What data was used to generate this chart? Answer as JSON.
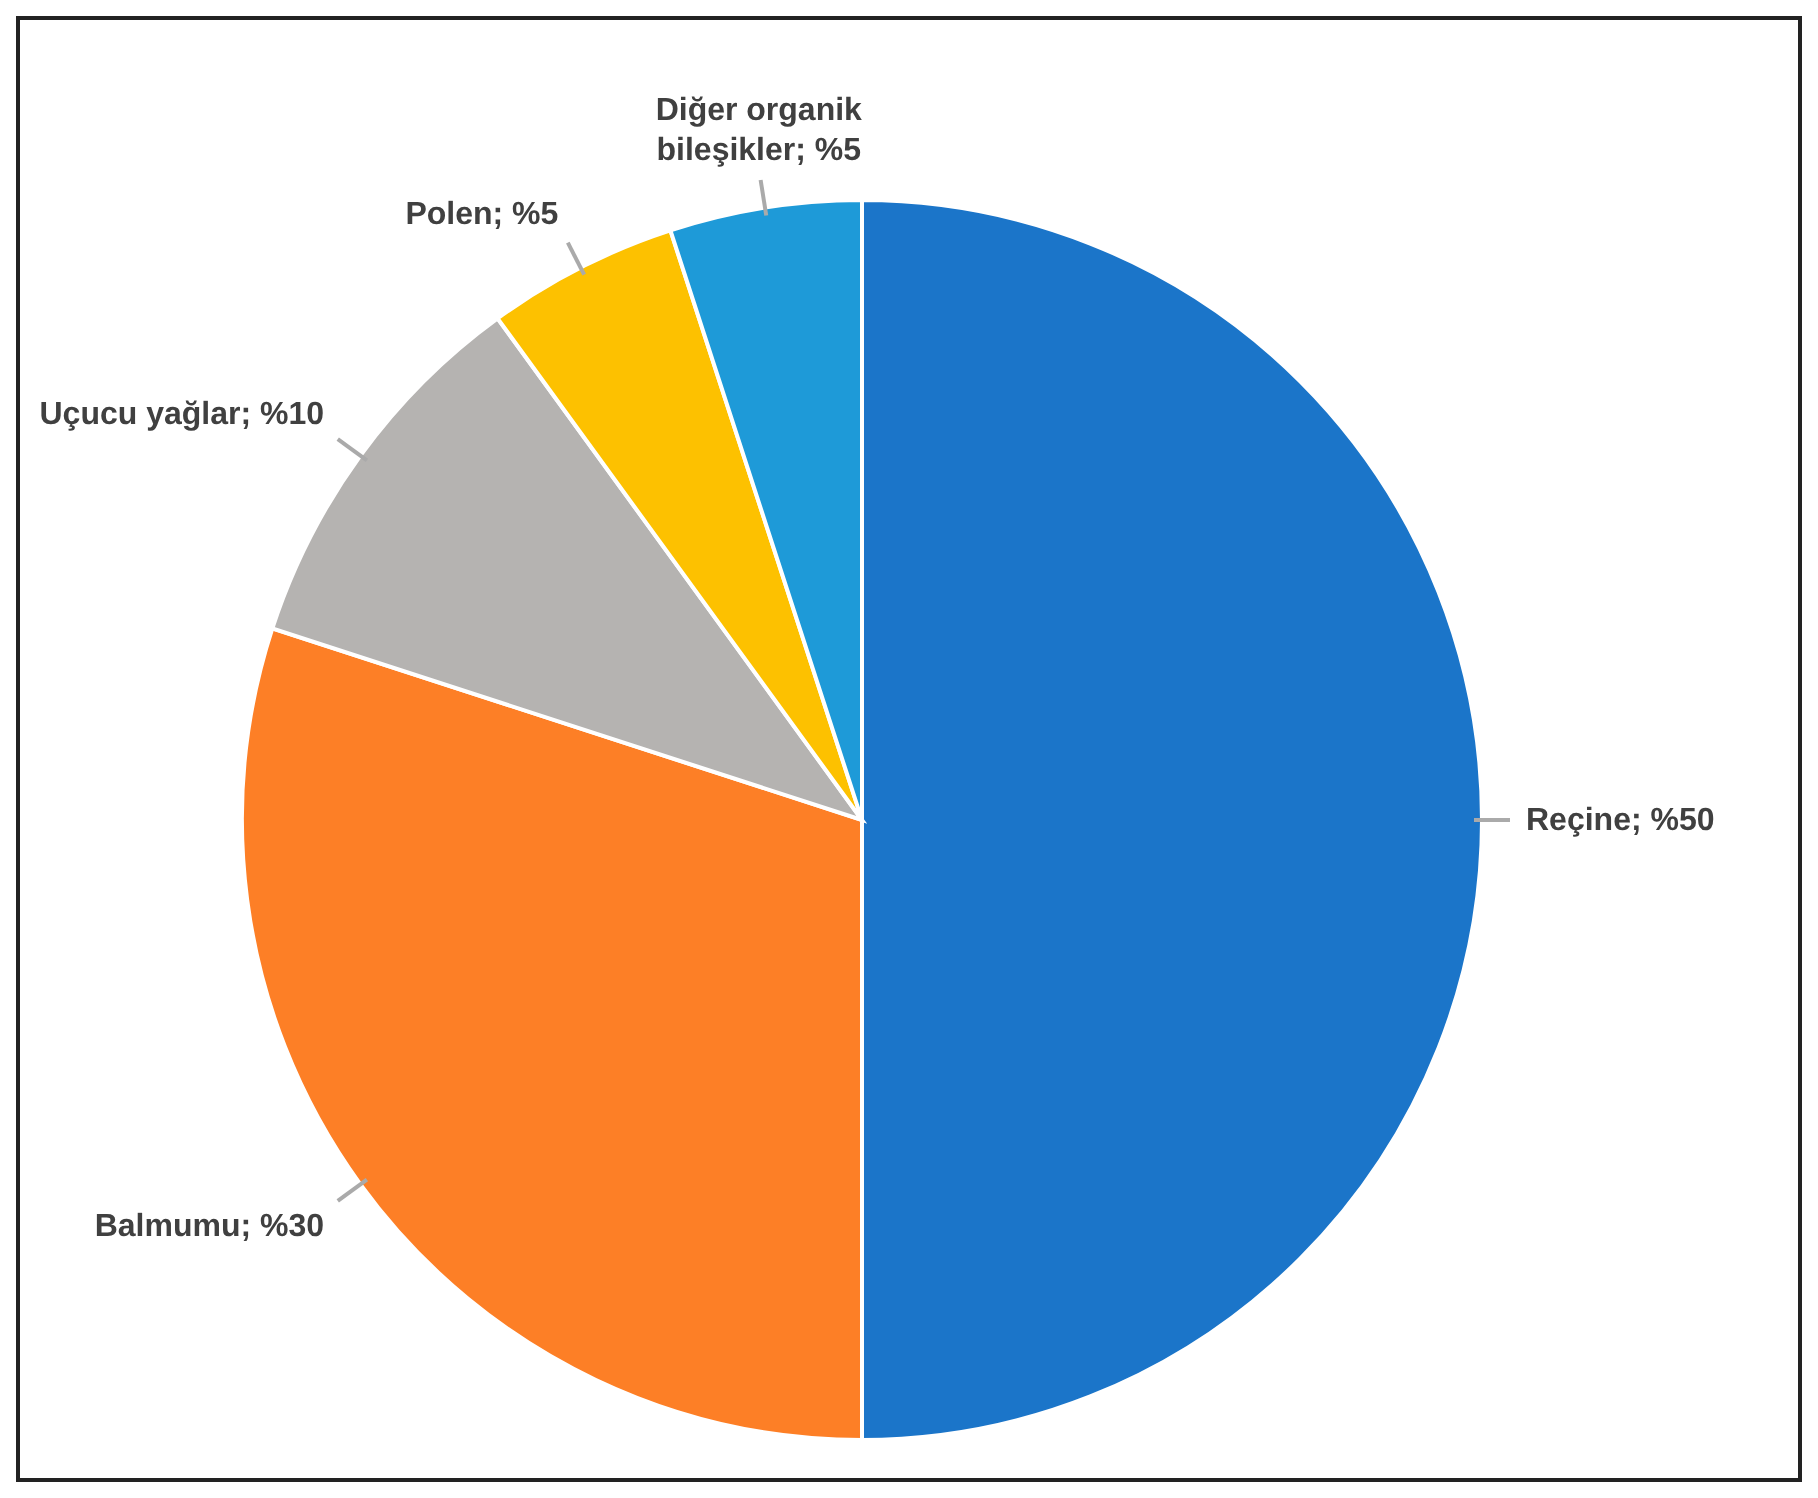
{
  "chart_data": {
    "type": "pie",
    "categories": [
      "Reçine",
      "Balmumu",
      "Uçucu yağlar",
      "Polen",
      "Diğer organik bileşikler"
    ],
    "values": [
      50,
      30,
      10,
      5,
      5
    ],
    "colors": [
      "#1b75c9",
      "#fd7f26",
      "#b5b3b1",
      "#fdc100",
      "#1e9ad8"
    ],
    "value_labels": [
      "%50",
      "%30",
      "%10",
      "%5",
      "%5"
    ]
  }
}
